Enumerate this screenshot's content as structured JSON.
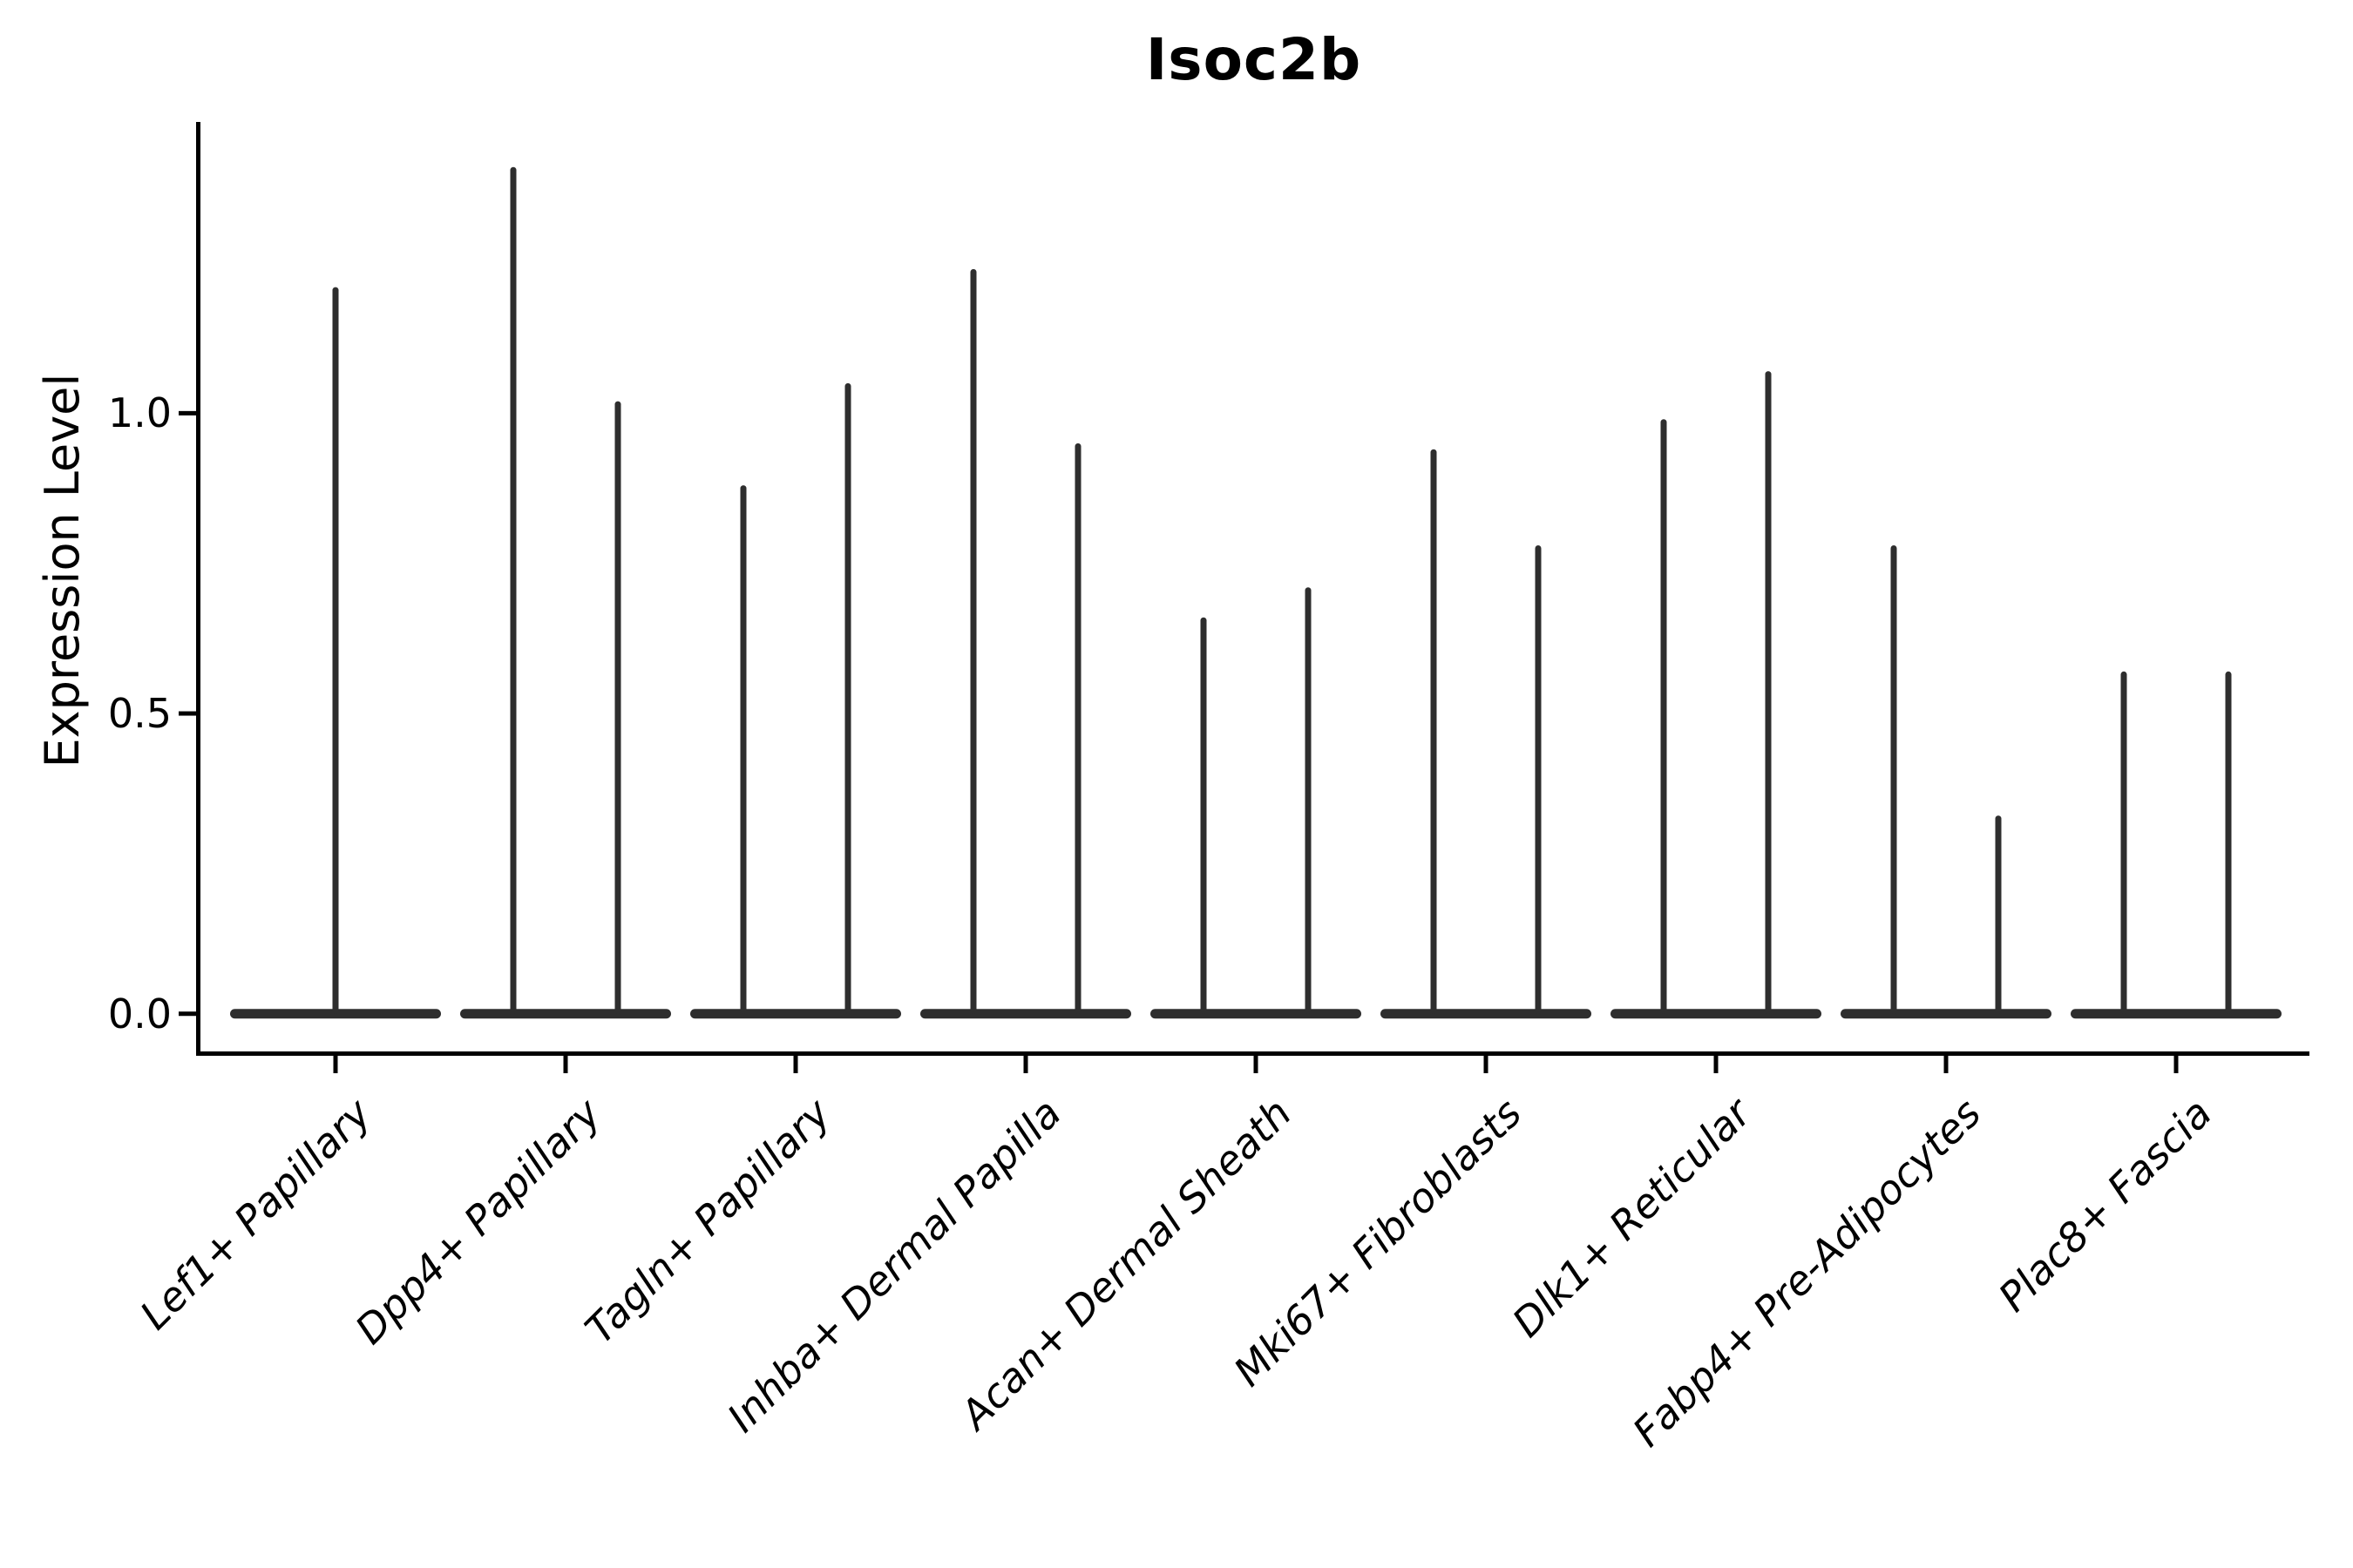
{
  "figure": {
    "title": "Isoc2b",
    "background_color": "#ffffff",
    "axis_color": "#000000",
    "text_color": "#000000",
    "violin_color": "#2e2e2e"
  },
  "chart_data": {
    "type": "violin",
    "title": "Isoc2b",
    "xlabel": "",
    "ylabel": "Expression Level",
    "ylim": [
      -0.07,
      1.485
    ],
    "yticks": [
      {
        "value": 0.0,
        "label": "0.0"
      },
      {
        "value": 0.5,
        "label": "0.5"
      },
      {
        "value": 1.0,
        "label": "1.0"
      }
    ],
    "grid": false,
    "legend": "none",
    "violin_style": "thin spike up to max value with wide flat density bulge at 0",
    "baseline_value": 0.0,
    "categories": [
      "Lef1+ Papillary",
      "Dpp4+ Papillary",
      "Tagln+ Papillary",
      "Inhba+ Dermal Papilla",
      "Acan+ Dermal Sheath",
      "Mki67+ Fibroblasts",
      "Dlk1+ Reticular",
      "Fabp4+ Pre-Adipocytes",
      "Plac8+ Fascia"
    ],
    "violins_per_category": [
      1,
      2,
      2,
      2,
      2,
      2,
      2,
      2,
      2
    ],
    "max_expression_values": [
      [
        1.21
      ],
      [
        1.41,
        1.02
      ],
      [
        0.88,
        1.05
      ],
      [
        1.24,
        0.95
      ],
      [
        0.66,
        0.71
      ],
      [
        0.94,
        0.78
      ],
      [
        0.99,
        1.07
      ],
      [
        0.78,
        0.33
      ],
      [
        0.57,
        0.57
      ]
    ]
  }
}
